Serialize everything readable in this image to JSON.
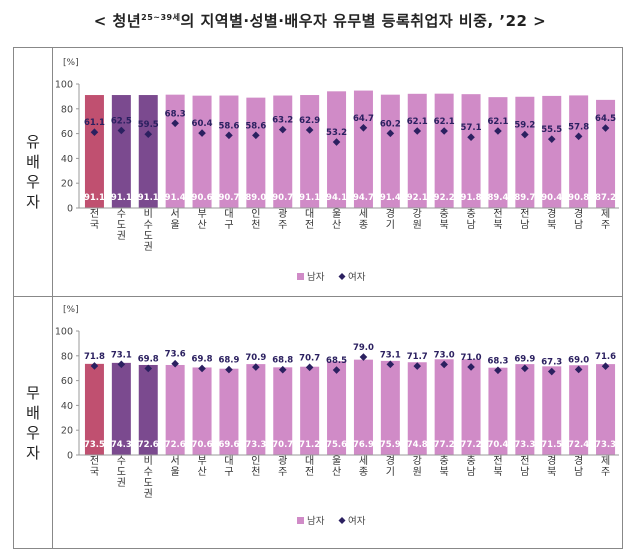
{
  "title": {
    "prefix": "< 청년",
    "sup": "25~39세",
    "suffix": "의 지역별·성별·배우자 유무별 등록취업자 비중, ’22 >"
  },
  "colors": {
    "male_national": "#c05070",
    "male_capital": "#7b4a8f",
    "male_other": "#d08bc7",
    "female_marker": "#2b2060",
    "axis": "#999999"
  },
  "legend": {
    "male": "남자",
    "female": "여자"
  },
  "chart_data": [
    {
      "type": "bar",
      "panel_label": [
        "유",
        "배",
        "우",
        "자"
      ],
      "unit": "[%]",
      "ylim": [
        0,
        100
      ],
      "yticks": [
        0,
        20,
        40,
        60,
        80,
        100
      ],
      "categories": [
        "전국",
        "수도권",
        "비수도권",
        "서울",
        "부산",
        "대구",
        "인천",
        "광주",
        "대전",
        "울산",
        "세종",
        "경기",
        "강원",
        "충북",
        "충남",
        "전북",
        "전남",
        "경북",
        "경남",
        "제주"
      ],
      "series": [
        {
          "name": "남자",
          "kind": "bar",
          "values": [
            91.1,
            91.1,
            91.1,
            91.4,
            90.6,
            90.7,
            89.0,
            90.7,
            91.1,
            94.1,
            94.7,
            91.4,
            92.1,
            92.2,
            91.8,
            89.4,
            89.7,
            90.4,
            90.8,
            87.2
          ]
        },
        {
          "name": "여자",
          "kind": "marker",
          "values": [
            61.1,
            62.5,
            59.5,
            68.3,
            60.4,
            58.6,
            58.6,
            63.2,
            62.9,
            53.2,
            64.7,
            60.2,
            62.1,
            62.1,
            57.1,
            62.1,
            59.2,
            55.5,
            57.8,
            64.5
          ]
        }
      ],
      "legend_position": "bottom-center"
    },
    {
      "type": "bar",
      "panel_label": [
        "무",
        "배",
        "우",
        "자"
      ],
      "unit": "[%]",
      "ylim": [
        0,
        100
      ],
      "yticks": [
        0,
        20,
        40,
        60,
        80,
        100
      ],
      "categories": [
        "전국",
        "수도권",
        "비수도권",
        "서울",
        "부산",
        "대구",
        "인천",
        "광주",
        "대전",
        "울산",
        "세종",
        "경기",
        "강원",
        "충북",
        "충남",
        "전북",
        "전남",
        "경북",
        "경남",
        "제주"
      ],
      "series": [
        {
          "name": "남자",
          "kind": "bar",
          "values": [
            73.5,
            74.3,
            72.6,
            72.6,
            70.6,
            69.6,
            73.3,
            70.7,
            71.2,
            75.6,
            76.9,
            75.9,
            74.8,
            77.2,
            77.2,
            70.4,
            73.3,
            71.5,
            72.4,
            73.3
          ]
        },
        {
          "name": "여자",
          "kind": "marker",
          "values": [
            71.8,
            73.1,
            69.8,
            73.6,
            69.8,
            68.9,
            70.9,
            68.8,
            70.7,
            68.5,
            79.0,
            73.1,
            71.7,
            73.0,
            71.0,
            68.3,
            69.9,
            67.3,
            69.0,
            71.6
          ]
        }
      ],
      "legend_position": "bottom-center"
    }
  ]
}
